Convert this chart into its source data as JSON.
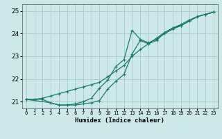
{
  "title": "",
  "xlabel": "Humidex (Indice chaleur)",
  "ylabel": "",
  "xlim": [
    -0.5,
    23.5
  ],
  "ylim": [
    20.7,
    25.3
  ],
  "yticks": [
    21,
    22,
    23,
    24,
    25
  ],
  "xticks": [
    0,
    1,
    2,
    3,
    4,
    5,
    6,
    7,
    8,
    9,
    10,
    11,
    12,
    13,
    14,
    15,
    16,
    17,
    18,
    19,
    20,
    21,
    22,
    23
  ],
  "bg_color": "#cce8e8",
  "grid_color": "#aacfcf",
  "line_color": "#1a7a6a",
  "line1_x": [
    0,
    1,
    2,
    3,
    4,
    5,
    6,
    7,
    8,
    9,
    10,
    11,
    12,
    13,
    14,
    15,
    16,
    17,
    18,
    19,
    20,
    21,
    22,
    23
  ],
  "line1_y": [
    21.1,
    21.1,
    21.1,
    20.95,
    20.85,
    20.85,
    20.85,
    20.9,
    20.95,
    21.05,
    21.55,
    21.9,
    22.2,
    23.1,
    23.7,
    23.55,
    23.7,
    24.05,
    24.25,
    24.35,
    24.55,
    24.75,
    24.85,
    24.95
  ],
  "line2_x": [
    0,
    1,
    2,
    3,
    4,
    5,
    6,
    7,
    8,
    9,
    10,
    11,
    12,
    13,
    14,
    15,
    16,
    17,
    18,
    19,
    20,
    21,
    22,
    23
  ],
  "line2_y": [
    21.1,
    21.1,
    21.15,
    21.25,
    21.35,
    21.45,
    21.55,
    21.65,
    21.75,
    21.85,
    22.1,
    22.35,
    22.6,
    23.0,
    23.3,
    23.55,
    23.8,
    24.05,
    24.25,
    24.4,
    24.6,
    24.75,
    24.85,
    24.95
  ],
  "line3_x": [
    0,
    3,
    4,
    5,
    6,
    7,
    8,
    9,
    10,
    11,
    12,
    13,
    14,
    15,
    16,
    17,
    18,
    19,
    20,
    21,
    22,
    23
  ],
  "line3_y": [
    21.1,
    20.95,
    20.85,
    20.85,
    20.9,
    21.0,
    21.15,
    21.6,
    21.95,
    22.55,
    22.85,
    24.15,
    23.75,
    23.6,
    23.75,
    24.0,
    24.2,
    24.35,
    24.55,
    24.75,
    24.85,
    24.95
  ]
}
